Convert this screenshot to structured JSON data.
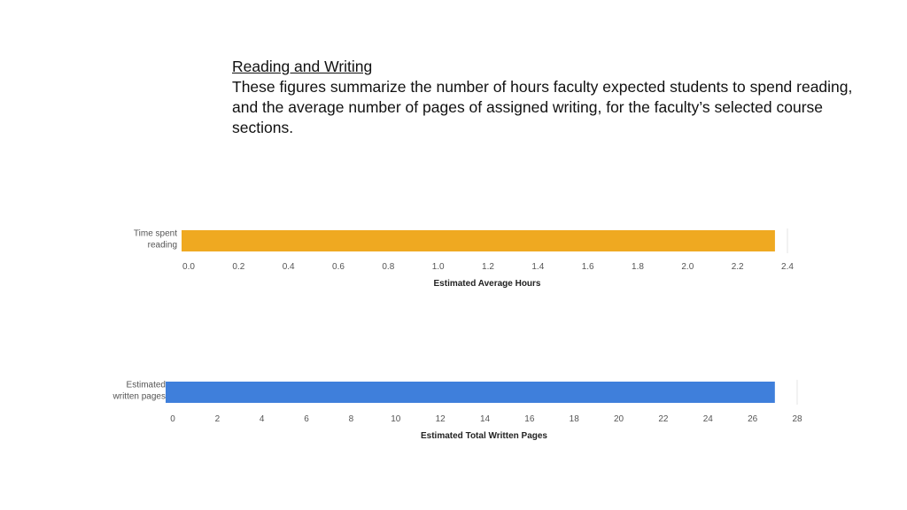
{
  "header": {
    "title": "Reading and Writing",
    "description": "These figures summarize the number of hours faculty expected students to spend reading, and the average number of pages of assigned writing, for the faculty’s selected course sections."
  },
  "chart_data": [
    {
      "type": "bar",
      "orientation": "horizontal",
      "categories": [
        "Time spent reading"
      ],
      "category_lines": [
        "Time spent",
        "reading"
      ],
      "values": [
        2.35
      ],
      "xlabel": "Estimated Average Hours",
      "ylabel": "",
      "xlim": [
        0,
        2.4
      ],
      "xticks": [
        "0.0",
        "0.2",
        "0.4",
        "0.6",
        "0.8",
        "1.0",
        "1.2",
        "1.4",
        "1.6",
        "1.8",
        "2.0",
        "2.2",
        "2.4"
      ],
      "color": "#EFA921",
      "grid": false
    },
    {
      "type": "bar",
      "orientation": "horizontal",
      "categories": [
        "Estimated written pages"
      ],
      "category_lines": [
        "Estimated",
        "written pages"
      ],
      "values": [
        27
      ],
      "xlabel": "Estimated Total Written Pages",
      "ylabel": "",
      "xlim": [
        0,
        28
      ],
      "xticks": [
        "0",
        "2",
        "4",
        "6",
        "8",
        "10",
        "12",
        "14",
        "16",
        "18",
        "20",
        "22",
        "24",
        "26",
        "28"
      ],
      "color": "#3F7FDB",
      "grid": false
    }
  ]
}
